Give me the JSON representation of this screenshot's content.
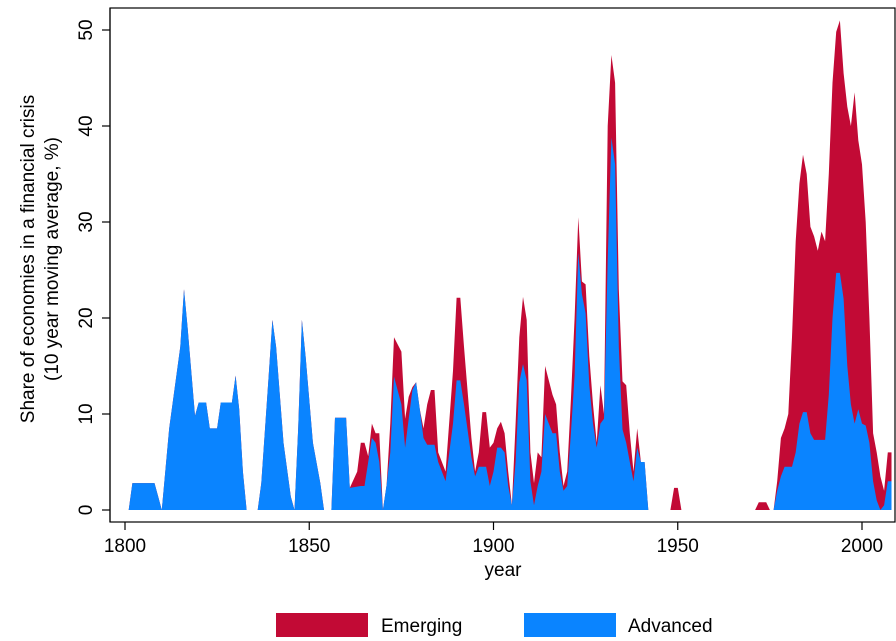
{
  "chart_data": {
    "type": "area",
    "xlabel": "year",
    "ylabel_lines": [
      "Share of economies in a financial crisis",
      "(10 year moving average, %)"
    ],
    "xlim": [
      1800,
      2008
    ],
    "ylim": [
      0,
      50
    ],
    "x_ticks": [
      1800,
      1850,
      1900,
      1950,
      2000
    ],
    "y_ticks": [
      0,
      10,
      20,
      30,
      40,
      50
    ],
    "grid": false,
    "legend_position": "bottom",
    "series": [
      {
        "name": "Emerging",
        "color": "#c20a35",
        "points": [
          [
            1800,
            0
          ],
          [
            1801,
            0
          ],
          [
            1802,
            2.8
          ],
          [
            1808,
            2.8
          ],
          [
            1809,
            1.4
          ],
          [
            1810,
            0
          ],
          [
            1812,
            8.5
          ],
          [
            1815,
            17
          ],
          [
            1816,
            23
          ],
          [
            1817,
            19
          ],
          [
            1819,
            9.8
          ],
          [
            1820,
            11.2
          ],
          [
            1822,
            11.2
          ],
          [
            1823,
            8.5
          ],
          [
            1825,
            8.5
          ],
          [
            1826,
            11.2
          ],
          [
            1829,
            11.2
          ],
          [
            1830,
            14
          ],
          [
            1831,
            10.5
          ],
          [
            1832,
            4
          ],
          [
            1833,
            0
          ],
          [
            1836,
            0
          ],
          [
            1837,
            2.8
          ],
          [
            1839,
            14
          ],
          [
            1840,
            19.8
          ],
          [
            1841,
            17
          ],
          [
            1843,
            7
          ],
          [
            1845,
            1.4
          ],
          [
            1846,
            0
          ],
          [
            1847,
            8.5
          ],
          [
            1848,
            19.8
          ],
          [
            1849,
            16
          ],
          [
            1851,
            7
          ],
          [
            1853,
            2.8
          ],
          [
            1854,
            0
          ],
          [
            1856,
            0
          ],
          [
            1857,
            9.6
          ],
          [
            1860,
            9.6
          ],
          [
            1861,
            2.3
          ],
          [
            1863,
            4
          ],
          [
            1864,
            7
          ],
          [
            1865,
            7
          ],
          [
            1866,
            5.6
          ],
          [
            1867,
            9
          ],
          [
            1868,
            8
          ],
          [
            1869,
            8
          ],
          [
            1870,
            0
          ],
          [
            1871,
            2.6
          ],
          [
            1872,
            9
          ],
          [
            1873,
            18
          ],
          [
            1875,
            16.5
          ],
          [
            1876,
            9.5
          ],
          [
            1877,
            11.8
          ],
          [
            1878,
            12.8
          ],
          [
            1879,
            13.3
          ],
          [
            1880,
            10.5
          ],
          [
            1881,
            8.5
          ],
          [
            1882,
            11
          ],
          [
            1883,
            12.5
          ],
          [
            1884,
            12.5
          ],
          [
            1885,
            6
          ],
          [
            1887,
            4
          ],
          [
            1889,
            14.5
          ],
          [
            1890,
            22.1
          ],
          [
            1891,
            22.1
          ],
          [
            1892,
            17
          ],
          [
            1894,
            7.5
          ],
          [
            1895,
            4
          ],
          [
            1896,
            6
          ],
          [
            1897,
            10.2
          ],
          [
            1898,
            10.2
          ],
          [
            1899,
            6.5
          ],
          [
            1900,
            7
          ],
          [
            1901,
            8.5
          ],
          [
            1902,
            9.2
          ],
          [
            1903,
            8
          ],
          [
            1904,
            4
          ],
          [
            1905,
            0.5
          ],
          [
            1906,
            9
          ],
          [
            1907,
            18
          ],
          [
            1908,
            22.2
          ],
          [
            1909,
            19.8
          ],
          [
            1910,
            6
          ],
          [
            1911,
            2.8
          ],
          [
            1912,
            6
          ],
          [
            1913,
            5.5
          ],
          [
            1914,
            15
          ],
          [
            1916,
            12
          ],
          [
            1917,
            11
          ],
          [
            1918,
            6
          ],
          [
            1919,
            2.5
          ],
          [
            1920,
            4
          ],
          [
            1921,
            11.5
          ],
          [
            1922,
            20
          ],
          [
            1923,
            30.5
          ],
          [
            1924,
            23.8
          ],
          [
            1925,
            23.5
          ],
          [
            1926,
            16
          ],
          [
            1927,
            11
          ],
          [
            1928,
            7
          ],
          [
            1929,
            13
          ],
          [
            1930,
            10
          ],
          [
            1931,
            40
          ],
          [
            1932,
            47.4
          ],
          [
            1933,
            44.5
          ],
          [
            1934,
            23
          ],
          [
            1935,
            13.4
          ],
          [
            1936,
            13
          ],
          [
            1937,
            8
          ],
          [
            1938,
            4
          ],
          [
            1939,
            8.5
          ],
          [
            1940,
            5
          ],
          [
            1941,
            5
          ],
          [
            1942,
            0
          ],
          [
            1943,
            0
          ],
          [
            1948,
            0
          ],
          [
            1949,
            2.3
          ],
          [
            1950,
            2.3
          ],
          [
            1951,
            0
          ],
          [
            1971,
            0
          ],
          [
            1972,
            0.8
          ],
          [
            1974,
            0.8
          ],
          [
            1975,
            0
          ],
          [
            1976,
            0
          ],
          [
            1977,
            3
          ],
          [
            1978,
            7.5
          ],
          [
            1979,
            8.5
          ],
          [
            1980,
            10
          ],
          [
            1981,
            18
          ],
          [
            1982,
            28
          ],
          [
            1983,
            34
          ],
          [
            1984,
            37
          ],
          [
            1985,
            35
          ],
          [
            1986,
            29.5
          ],
          [
            1987,
            28.5
          ],
          [
            1988,
            27
          ],
          [
            1989,
            29
          ],
          [
            1990,
            28
          ],
          [
            1991,
            35
          ],
          [
            1992,
            44.5
          ],
          [
            1993,
            49.8
          ],
          [
            1994,
            51
          ],
          [
            1995,
            45.5
          ],
          [
            1996,
            42
          ],
          [
            1997,
            40
          ],
          [
            1998,
            43.5
          ],
          [
            1999,
            38.5
          ],
          [
            2000,
            36
          ],
          [
            2001,
            30
          ],
          [
            2002,
            20
          ],
          [
            2003,
            8
          ],
          [
            2004,
            6
          ],
          [
            2005,
            3.5
          ],
          [
            2006,
            2
          ],
          [
            2007,
            6
          ],
          [
            2008,
            6
          ]
        ]
      },
      {
        "name": "Advanced",
        "color": "#0a84ff",
        "points": [
          [
            1800,
            0
          ],
          [
            1801,
            0
          ],
          [
            1802,
            2.8
          ],
          [
            1808,
            2.8
          ],
          [
            1809,
            1.4
          ],
          [
            1810,
            0
          ],
          [
            1812,
            8.5
          ],
          [
            1815,
            17
          ],
          [
            1816,
            23
          ],
          [
            1817,
            19
          ],
          [
            1819,
            9.8
          ],
          [
            1820,
            11.2
          ],
          [
            1822,
            11.2
          ],
          [
            1823,
            8.5
          ],
          [
            1825,
            8.5
          ],
          [
            1826,
            11.2
          ],
          [
            1829,
            11.2
          ],
          [
            1830,
            14
          ],
          [
            1831,
            10.5
          ],
          [
            1832,
            4
          ],
          [
            1833,
            0
          ],
          [
            1836,
            0
          ],
          [
            1837,
            2.8
          ],
          [
            1839,
            14
          ],
          [
            1840,
            19.8
          ],
          [
            1841,
            17
          ],
          [
            1843,
            7
          ],
          [
            1845,
            1.4
          ],
          [
            1846,
            0
          ],
          [
            1847,
            8.5
          ],
          [
            1848,
            19.8
          ],
          [
            1849,
            16
          ],
          [
            1851,
            7
          ],
          [
            1853,
            2.8
          ],
          [
            1854,
            0
          ],
          [
            1856,
            0
          ],
          [
            1857,
            9.6
          ],
          [
            1860,
            9.6
          ],
          [
            1861,
            2.3
          ],
          [
            1864,
            2.5
          ],
          [
            1865,
            2.5
          ],
          [
            1866,
            5
          ],
          [
            1867,
            7.5
          ],
          [
            1868,
            7
          ],
          [
            1869,
            5
          ],
          [
            1870,
            0
          ],
          [
            1871,
            2.6
          ],
          [
            1872,
            6
          ],
          [
            1873,
            13.9
          ],
          [
            1875,
            11
          ],
          [
            1876,
            6.5
          ],
          [
            1877,
            9.5
          ],
          [
            1878,
            12.5
          ],
          [
            1879,
            13.3
          ],
          [
            1880,
            10.5
          ],
          [
            1881,
            7.5
          ],
          [
            1882,
            6.8
          ],
          [
            1883,
            6.8
          ],
          [
            1884,
            6.8
          ],
          [
            1885,
            5
          ],
          [
            1887,
            3
          ],
          [
            1889,
            9
          ],
          [
            1890,
            13.5
          ],
          [
            1891,
            13.5
          ],
          [
            1892,
            11
          ],
          [
            1894,
            5.5
          ],
          [
            1895,
            3.5
          ],
          [
            1896,
            4.5
          ],
          [
            1897,
            4.5
          ],
          [
            1898,
            4.5
          ],
          [
            1899,
            2.5
          ],
          [
            1900,
            4
          ],
          [
            1901,
            6.5
          ],
          [
            1902,
            6.5
          ],
          [
            1903,
            6
          ],
          [
            1904,
            2.5
          ],
          [
            1905,
            0.5
          ],
          [
            1906,
            5
          ],
          [
            1907,
            13.3
          ],
          [
            1908,
            15.2
          ],
          [
            1909,
            13.5
          ],
          [
            1910,
            3
          ],
          [
            1911,
            0.5
          ],
          [
            1912,
            2.5
          ],
          [
            1913,
            4
          ],
          [
            1914,
            10
          ],
          [
            1916,
            8
          ],
          [
            1917,
            8
          ],
          [
            1918,
            4
          ],
          [
            1919,
            2
          ],
          [
            1920,
            2.5
          ],
          [
            1921,
            8
          ],
          [
            1922,
            14
          ],
          [
            1923,
            26.8
          ],
          [
            1924,
            22.5
          ],
          [
            1925,
            20.5
          ],
          [
            1926,
            13
          ],
          [
            1927,
            9
          ],
          [
            1928,
            6.5
          ],
          [
            1929,
            9
          ],
          [
            1930,
            9.5
          ],
          [
            1931,
            26
          ],
          [
            1932,
            38.8
          ],
          [
            1933,
            36
          ],
          [
            1934,
            17
          ],
          [
            1935,
            8.4
          ],
          [
            1936,
            7
          ],
          [
            1937,
            5
          ],
          [
            1938,
            3
          ],
          [
            1939,
            6.5
          ],
          [
            1940,
            5
          ],
          [
            1941,
            5
          ],
          [
            1942,
            0
          ],
          [
            1976,
            0
          ],
          [
            1977,
            2
          ],
          [
            1978,
            3.5
          ],
          [
            1979,
            4.5
          ],
          [
            1980,
            4.5
          ],
          [
            1981,
            4.5
          ],
          [
            1982,
            6
          ],
          [
            1983,
            9
          ],
          [
            1984,
            10.2
          ],
          [
            1985,
            10.2
          ],
          [
            1986,
            8
          ],
          [
            1987,
            7.3
          ],
          [
            1988,
            7.3
          ],
          [
            1989,
            7.3
          ],
          [
            1990,
            7.3
          ],
          [
            1991,
            12
          ],
          [
            1992,
            20
          ],
          [
            1993,
            24.7
          ],
          [
            1994,
            24.7
          ],
          [
            1995,
            22
          ],
          [
            1996,
            15
          ],
          [
            1997,
            11
          ],
          [
            1998,
            9
          ],
          [
            1999,
            10.5
          ],
          [
            2000,
            9
          ],
          [
            2001,
            8.8
          ],
          [
            2002,
            7
          ],
          [
            2003,
            3
          ],
          [
            2004,
            1
          ],
          [
            2005,
            0
          ],
          [
            2006,
            0.5
          ],
          [
            2007,
            3
          ],
          [
            2008,
            3
          ]
        ]
      }
    ]
  }
}
